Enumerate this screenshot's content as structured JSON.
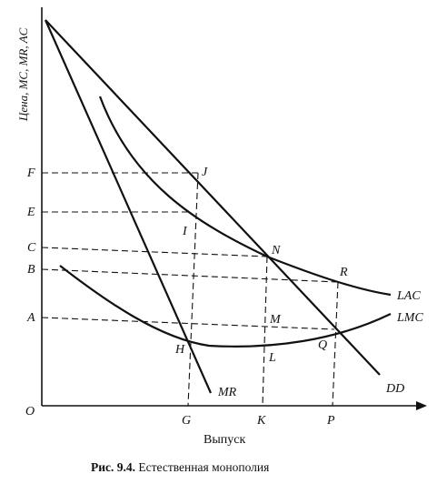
{
  "axes": {
    "y_label": "Цена, MC, MR, AC",
    "x_label": "Выпуск",
    "origin": "O",
    "price_levels": [
      "F",
      "E",
      "C",
      "B",
      "A"
    ],
    "quantity_levels": [
      "G",
      "K",
      "P"
    ]
  },
  "curves": {
    "demand": "DD",
    "marginal_revenue": "MR",
    "average_cost": "LAC",
    "marginal_cost": "LMC"
  },
  "points": [
    "J",
    "I",
    "N",
    "R",
    "M",
    "Q",
    "H",
    "L"
  ],
  "caption": {
    "number": "Рис. 9.4.",
    "title": "Естественная монополия"
  }
}
